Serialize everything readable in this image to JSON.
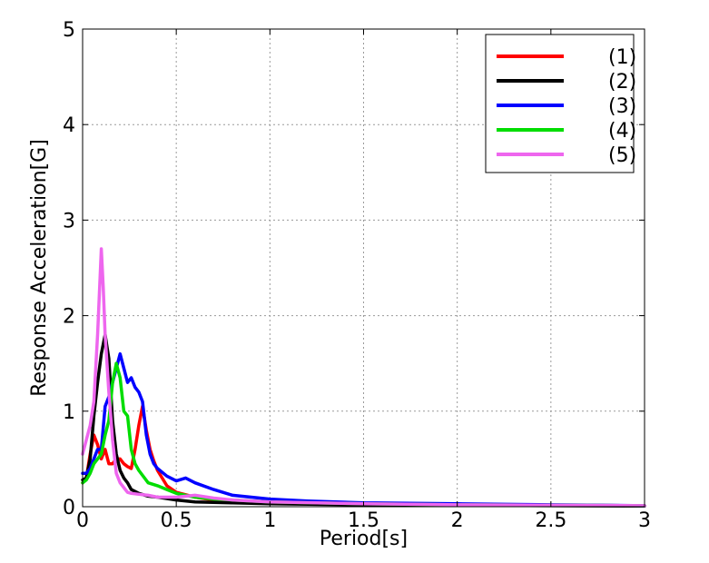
{
  "chart_data": {
    "type": "line",
    "title": "",
    "xlabel": "Period[s]",
    "ylabel": "Response Acceleration[G]",
    "xlim": [
      0,
      3
    ],
    "ylim": [
      0,
      5
    ],
    "xticks": [
      "0",
      "0.5",
      "1",
      "1.5",
      "2",
      "2.5",
      "3"
    ],
    "yticks": [
      "0",
      "1",
      "2",
      "3",
      "4",
      "5"
    ],
    "grid": true,
    "legend_position": "top-right",
    "series": [
      {
        "name": "(1)",
        "color": "#ff0000",
        "x": [
          0.0,
          0.02,
          0.04,
          0.06,
          0.08,
          0.1,
          0.12,
          0.14,
          0.16,
          0.18,
          0.2,
          0.22,
          0.24,
          0.26,
          0.28,
          0.3,
          0.32,
          0.34,
          0.36,
          0.38,
          0.4,
          0.45,
          0.5,
          0.6,
          0.7,
          0.8,
          1.0,
          1.2,
          1.5,
          2.0,
          2.5,
          3.0
        ],
        "values": [
          0.25,
          0.3,
          0.55,
          0.75,
          0.65,
          0.5,
          0.6,
          0.45,
          0.45,
          0.5,
          0.5,
          0.45,
          0.42,
          0.4,
          0.6,
          0.85,
          1.05,
          0.8,
          0.6,
          0.48,
          0.38,
          0.22,
          0.15,
          0.1,
          0.07,
          0.06,
          0.05,
          0.04,
          0.03,
          0.02,
          0.015,
          0.01
        ]
      },
      {
        "name": "(2)",
        "color": "#000000",
        "x": [
          0.0,
          0.02,
          0.04,
          0.06,
          0.08,
          0.1,
          0.12,
          0.14,
          0.16,
          0.18,
          0.2,
          0.22,
          0.24,
          0.26,
          0.3,
          0.35,
          0.4,
          0.5,
          0.6,
          0.8,
          1.0,
          1.5,
          2.0,
          2.5,
          3.0
        ],
        "values": [
          0.28,
          0.3,
          0.5,
          0.95,
          1.3,
          1.6,
          1.8,
          1.55,
          0.9,
          0.55,
          0.38,
          0.3,
          0.25,
          0.18,
          0.14,
          0.11,
          0.1,
          0.07,
          0.05,
          0.04,
          0.03,
          0.02,
          0.015,
          0.01,
          0.008
        ]
      },
      {
        "name": "(3)",
        "color": "#0000ff",
        "x": [
          0.0,
          0.02,
          0.04,
          0.06,
          0.08,
          0.1,
          0.12,
          0.14,
          0.16,
          0.18,
          0.2,
          0.22,
          0.24,
          0.26,
          0.28,
          0.3,
          0.32,
          0.34,
          0.36,
          0.38,
          0.4,
          0.45,
          0.5,
          0.55,
          0.6,
          0.7,
          0.8,
          0.9,
          1.0,
          1.2,
          1.5,
          2.0,
          2.5,
          3.0
        ],
        "values": [
          0.35,
          0.35,
          0.4,
          0.5,
          0.6,
          0.6,
          1.05,
          1.15,
          1.3,
          1.45,
          1.6,
          1.45,
          1.3,
          1.35,
          1.25,
          1.2,
          1.1,
          0.75,
          0.55,
          0.45,
          0.4,
          0.32,
          0.27,
          0.3,
          0.25,
          0.18,
          0.12,
          0.1,
          0.08,
          0.06,
          0.04,
          0.03,
          0.02,
          0.01
        ]
      },
      {
        "name": "(4)",
        "color": "#00dd00",
        "x": [
          0.0,
          0.02,
          0.04,
          0.06,
          0.08,
          0.1,
          0.12,
          0.14,
          0.16,
          0.18,
          0.2,
          0.22,
          0.24,
          0.26,
          0.28,
          0.3,
          0.35,
          0.4,
          0.45,
          0.5,
          0.6,
          0.7,
          0.8,
          1.0,
          1.5,
          2.0,
          2.5,
          3.0
        ],
        "values": [
          0.25,
          0.28,
          0.35,
          0.45,
          0.5,
          0.55,
          0.75,
          0.9,
          1.3,
          1.5,
          1.35,
          1.0,
          0.95,
          0.6,
          0.45,
          0.38,
          0.25,
          0.22,
          0.18,
          0.14,
          0.1,
          0.08,
          0.07,
          0.05,
          0.03,
          0.02,
          0.015,
          0.01
        ]
      },
      {
        "name": "(5)",
        "color": "#ee66ee",
        "x": [
          0.0,
          0.02,
          0.04,
          0.06,
          0.08,
          0.1,
          0.11,
          0.12,
          0.14,
          0.16,
          0.18,
          0.2,
          0.22,
          0.24,
          0.26,
          0.3,
          0.35,
          0.4,
          0.5,
          0.6,
          0.7,
          0.8,
          1.0,
          1.5,
          2.0,
          2.5,
          3.0
        ],
        "values": [
          0.55,
          0.7,
          0.85,
          1.1,
          1.8,
          2.7,
          2.3,
          1.8,
          1.2,
          0.7,
          0.35,
          0.25,
          0.2,
          0.15,
          0.14,
          0.13,
          0.12,
          0.1,
          0.1,
          0.12,
          0.09,
          0.07,
          0.05,
          0.03,
          0.02,
          0.015,
          0.01
        ]
      }
    ]
  }
}
